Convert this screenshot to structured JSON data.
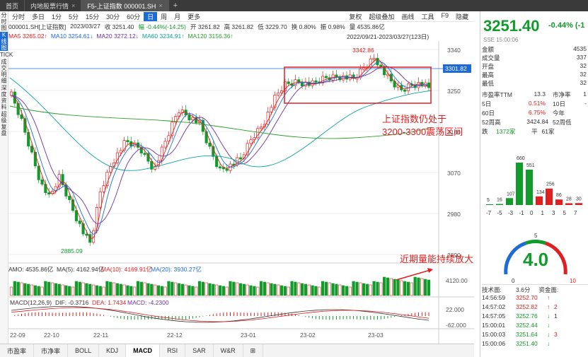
{
  "tabs": [
    {
      "label": "首页"
    },
    {
      "label": "内地股票行情"
    },
    {
      "label": "F5-上证指数 000001.SH",
      "active": true
    }
  ],
  "side_menu": [
    "分时图",
    "K线图",
    "TICK",
    "成交明细",
    "深度资料",
    "超级复盘"
  ],
  "periods": [
    "分时",
    "多日",
    "1分",
    "5分",
    "15分",
    "30分",
    "60分",
    "日",
    "周",
    "月",
    "更多"
  ],
  "active_period": "日",
  "toolbar_right": [
    "复权",
    "超级叠加",
    "画线",
    "工具",
    "F9",
    "隐藏"
  ],
  "info": {
    "code": "000001.SH[上证指数]",
    "date": "2023/03/27",
    "close": "收 3251.40",
    "amp": "幅 -0.44%(-14.25)",
    "open": "开 3261.82",
    "high": "高 3261.82",
    "low": "低 3229.70",
    "turnover": "换 0.80%",
    "amplitude": "振 0.98%",
    "volume": "量 4535.86亿"
  },
  "ma": [
    {
      "label": "MA5 3265.02↑",
      "color": "#e02020"
    },
    {
      "label": "MA10 3254.61↓",
      "color": "#1e6bd6"
    },
    {
      "label": "MA20 3272.12↓",
      "color": "#7030a0"
    },
    {
      "label": "MA60 3234.91↑",
      "color": "#0aa59b"
    },
    {
      "label": "MA120 3156.36↑",
      "color": "#2e9e2e"
    }
  ],
  "range_text": "2022/09/21-2023/03/27(123日)",
  "axis": {
    "price_ticks": [
      "3340",
      "3250",
      "3160",
      "3070",
      "2980",
      "2890"
    ],
    "current_price": "3301.82",
    "amo_tick": "4120.00",
    "macd_ticks": [
      "22.000",
      "-62.000"
    ],
    "x_ticks": [
      "22-09",
      "22-10",
      "22-11",
      "22-12",
      "23-01",
      "23-02",
      "23-03"
    ]
  },
  "annotations": {
    "high_label": "3342.86",
    "low_label": "2885.09",
    "note1_line1": "上证指数仍处于",
    "note1_line2": "3200-3300震荡区间",
    "note2": "近期量能持续放大"
  },
  "amo_row": {
    "amo": "AMO: 4535.86亿",
    "ma5": "MA(5): 4162.94亿",
    "ma10": "MA(10): 4169.91亿",
    "ma20": "MA(20): 3930.27亿"
  },
  "macd_row": {
    "name": "MACD(12,26,9)",
    "dif": "DIF: -0.3716",
    "dea": "DEA: 1.7434",
    "macd": "MACD: -4.2300"
  },
  "bottom_tabs": [
    "市盈率",
    "市净率",
    "BOLL",
    "KDJ",
    "MACD",
    "RSI",
    "SAR",
    "W&R"
  ],
  "active_bottom_tab": "MACD",
  "right": {
    "price": "3251.40",
    "change": "-0.44% (-1",
    "sub": "SSE 15:00:06",
    "stats": [
      {
        "k": "金额",
        "v": "4535"
      },
      {
        "k": "成交量",
        "v": "337"
      },
      {
        "k": "开盘",
        "v": "32"
      },
      {
        "k": "最高",
        "v": "32"
      },
      {
        "k": "最低",
        "v": "32"
      }
    ],
    "pe": {
      "k": "市盈率TTM",
      "v": "13.3",
      "k2": "市净率",
      "v2": "1"
    },
    "d5": {
      "k": "5日",
      "v": "0.51%",
      "k2": "10日",
      "v2": ""
    },
    "d60": {
      "k": "60日",
      "v": "6.75%",
      "k2": "今年",
      "v2": ""
    },
    "w52": {
      "k": "52周高",
      "v": "3424.84",
      "k2": "52周低",
      "v2": ""
    },
    "updown": {
      "k": "跌",
      "v": "1372家",
      "k2": "平",
      "v2": "61家"
    },
    "dist_values": [
      "5",
      "16",
      "107",
      "660",
      "551",
      "134",
      "256",
      "86",
      "28",
      "30"
    ],
    "dist_labels": [
      "-7",
      "-5",
      "-3",
      "-1",
      "0",
      "1",
      "3",
      "5",
      "7"
    ],
    "gauge": {
      "value": "4.0",
      "min": "0",
      "mid": "5",
      "max": "10"
    },
    "tech_label": "技术面:",
    "tech_value": "3.6分",
    "fund_label": "资金面:",
    "ticks": [
      {
        "t": "14:56:59",
        "p": "3252.70",
        "d": "up",
        "e": ""
      },
      {
        "t": "14:57:02",
        "p": "3252.82",
        "d": "up",
        "e": "2"
      },
      {
        "t": "14:57:05",
        "p": "3252.76",
        "d": "down",
        "e": "1"
      },
      {
        "t": "15:00:01",
        "p": "3252.44",
        "d": "down",
        "e": ""
      },
      {
        "t": "15:00:03",
        "p": "3251.64",
        "d": "down",
        "e": "3"
      },
      {
        "t": "15:00:06",
        "p": "3251.40",
        "d": "down",
        "e": ""
      }
    ]
  },
  "colors": {
    "up": "#e02020",
    "down": "#109b2a",
    "accent": "#1e6bd6"
  }
}
